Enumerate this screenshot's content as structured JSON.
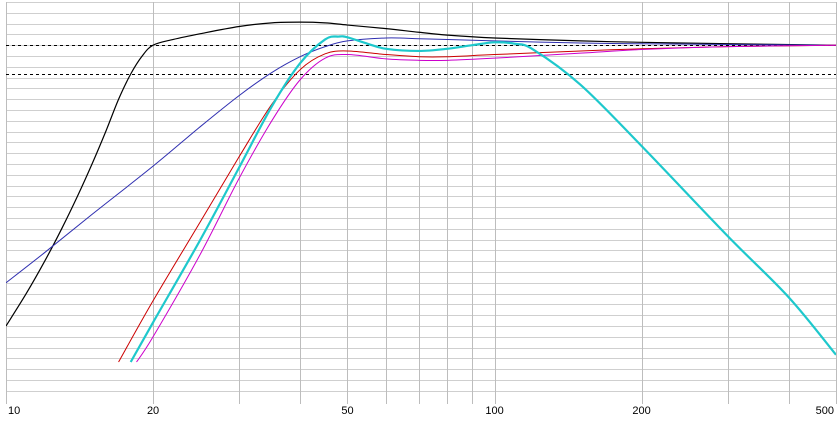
{
  "chart_data": {
    "type": "line",
    "title": "",
    "xlabel": "",
    "ylabel": "",
    "x_scale": "log",
    "xlim": [
      10,
      500
    ],
    "ylim": [
      -49,
      6
    ],
    "grid": true,
    "x_tick_labels": [
      {
        "value": 10,
        "label": "10"
      },
      {
        "value": 20,
        "label": "20"
      },
      {
        "value": 50,
        "label": "50"
      },
      {
        "value": 100,
        "label": "100"
      },
      {
        "value": 200,
        "label": "200"
      },
      {
        "value": 500,
        "label": "500"
      }
    ],
    "x_gridlines": [
      10,
      20,
      30,
      40,
      50,
      60,
      70,
      80,
      90,
      100,
      200,
      300,
      400,
      500
    ],
    "y_gridlines_step": 1.5,
    "reference_lines": [
      {
        "y": 0,
        "style": "dashed",
        "color": "#000000"
      },
      {
        "y": -4,
        "style": "dashed",
        "color": "#000000"
      }
    ],
    "series": [
      {
        "color": "#000000",
        "width": 1.2,
        "x": [
          10,
          11,
          12,
          13,
          14,
          15,
          16,
          17,
          18,
          19,
          20,
          22,
          25,
          30,
          35,
          40,
          45,
          50,
          60,
          70,
          80,
          100,
          150,
          200,
          300,
          500
        ],
        "y": [
          -39,
          -34.5,
          -30,
          -25.5,
          -21,
          -16.5,
          -12,
          -7.5,
          -4,
          -1.5,
          0,
          0.8,
          1.6,
          2.6,
          3.1,
          3.2,
          3.1,
          2.8,
          2.3,
          1.8,
          1.4,
          1,
          0.6,
          0.4,
          0.2,
          0
        ]
      },
      {
        "color": "#2f2fb0",
        "width": 1,
        "x": [
          10,
          12,
          15,
          20,
          25,
          30,
          35,
          40,
          45,
          50,
          60,
          70,
          80,
          100,
          150,
          200,
          300,
          500
        ],
        "y": [
          -33,
          -28.8,
          -23.5,
          -16.8,
          -11.3,
          -7,
          -3.8,
          -1.6,
          -0.2,
          0.6,
          1,
          0.9,
          0.8,
          0.6,
          0.3,
          0.2,
          0.1,
          0
        ]
      },
      {
        "color": "#cc0000",
        "width": 1,
        "x": [
          17,
          20,
          25,
          30,
          35,
          40,
          45,
          50,
          60,
          70,
          80,
          100,
          150,
          200,
          300,
          500
        ],
        "y": [
          -44,
          -35.5,
          -24.5,
          -15.5,
          -8.2,
          -3.4,
          -1.2,
          -0.8,
          -1.3,
          -1.6,
          -1.6,
          -1.3,
          -0.8,
          -0.5,
          -0.2,
          0
        ]
      },
      {
        "color": "#cc00cc",
        "width": 1,
        "x": [
          18.5,
          20,
          25,
          30,
          35,
          40,
          45,
          50,
          60,
          70,
          80,
          100,
          150,
          200,
          300,
          500
        ],
        "y": [
          -44,
          -40.5,
          -29,
          -18.5,
          -10.5,
          -4.8,
          -1.8,
          -1.3,
          -1.9,
          -2.1,
          -2.1,
          -1.8,
          -1.1,
          -0.6,
          -0.2,
          0
        ]
      },
      {
        "color": "#1ec8cc",
        "width": 2.2,
        "x": [
          18,
          20,
          25,
          30,
          35,
          40,
          45,
          48,
          50,
          55,
          60,
          70,
          80,
          90,
          100,
          110,
          120,
          150,
          200,
          300,
          400,
          500
        ],
        "y": [
          -44,
          -38.5,
          -27,
          -17,
          -8.5,
          -2.5,
          0.8,
          1.2,
          1.1,
          0.2,
          -0.5,
          -0.8,
          -0.5,
          0,
          0.4,
          0.2,
          -0.6,
          -5.5,
          -14,
          -26.5,
          -35,
          -43
        ]
      }
    ]
  }
}
